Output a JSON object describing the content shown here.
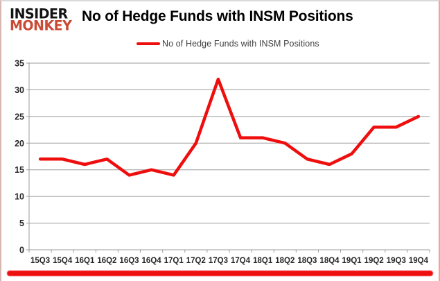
{
  "logo": {
    "line1": "INSIDER",
    "line2": "MONKEY"
  },
  "title": "No of Hedge Funds with INSM Positions",
  "legend": {
    "label": "No of Hedge Funds with INSM Positions"
  },
  "colors": {
    "line": "#ee0e0e",
    "logo_accent": "#cb4a35",
    "grid": "#9b9b9b",
    "axis_text": "#262626",
    "legend_text": "#3f3f3f",
    "bottom_bar": "#ee0f0f",
    "title_text": "#000000"
  },
  "chart_data": {
    "type": "line",
    "title": "No of Hedge Funds with INSM Positions",
    "categories": [
      "15Q3",
      "15Q4",
      "16Q1",
      "16Q2",
      "16Q3",
      "16Q4",
      "17Q1",
      "17Q2",
      "17Q3",
      "17Q4",
      "18Q1",
      "18Q2",
      "18Q3",
      "18Q4",
      "19Q1",
      "19Q2",
      "19Q3",
      "19Q4"
    ],
    "series": [
      {
        "name": "No of Hedge Funds with INSM Positions",
        "values": [
          17,
          17,
          16,
          17,
          14,
          15,
          14,
          20,
          32,
          21,
          21,
          20,
          17,
          16,
          18,
          23,
          23,
          25
        ]
      }
    ],
    "ylim": [
      0,
      35
    ],
    "yticks": [
      0,
      5,
      10,
      15,
      20,
      25,
      30,
      35
    ],
    "xlabel": "",
    "ylabel": "",
    "grid": true,
    "legend_position": "top-center"
  }
}
